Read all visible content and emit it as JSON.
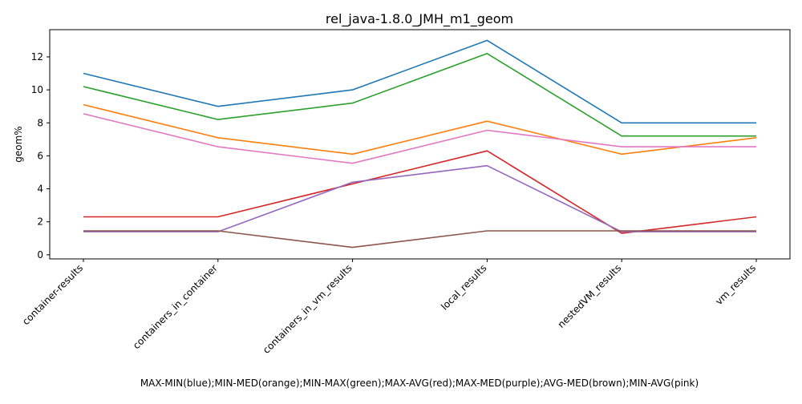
{
  "chart_data": {
    "type": "line",
    "title": "rel_java-1.8.0_JMH_m1_geom",
    "xlabel": "MAX-MIN(blue);MIN-MED(orange);MIN-MAX(green);MAX-AVG(red);MAX-MED(purple);AVG-MED(brown);MIN-AVG(pink)",
    "ylabel": "geom%",
    "categories": [
      "container-results",
      "containers_in_container",
      "containers_in_vm_results",
      "local_results",
      "nestedVM_results",
      "vm_results"
    ],
    "ylim": [
      -0.25,
      13.65
    ],
    "yticks": [
      0,
      2,
      4,
      6,
      8,
      10,
      12
    ],
    "grid": false,
    "legend": "none",
    "series": [
      {
        "color": "#1f77b4",
        "values": [
          11.0,
          9.0,
          10.0,
          13.0,
          8.0,
          8.0
        ]
      },
      {
        "color": "#ff7f0e",
        "values": [
          9.1,
          7.1,
          6.1,
          8.1,
          6.1,
          7.1
        ]
      },
      {
        "color": "#2ca02c",
        "values": [
          10.2,
          8.2,
          9.2,
          12.2,
          7.2,
          7.2
        ]
      },
      {
        "color": "#d62728",
        "values": [
          2.3,
          2.3,
          4.3,
          6.3,
          1.3,
          2.3
        ]
      },
      {
        "color": "#9467bd",
        "values": [
          1.4,
          1.4,
          4.4,
          5.4,
          1.4,
          1.4
        ]
      },
      {
        "color": "#8c564b",
        "values": [
          1.45,
          1.45,
          0.45,
          1.45,
          1.45,
          1.45
        ]
      },
      {
        "color": "#e377c2",
        "values": [
          8.55,
          6.55,
          5.55,
          7.55,
          6.55,
          6.55
        ]
      }
    ]
  }
}
